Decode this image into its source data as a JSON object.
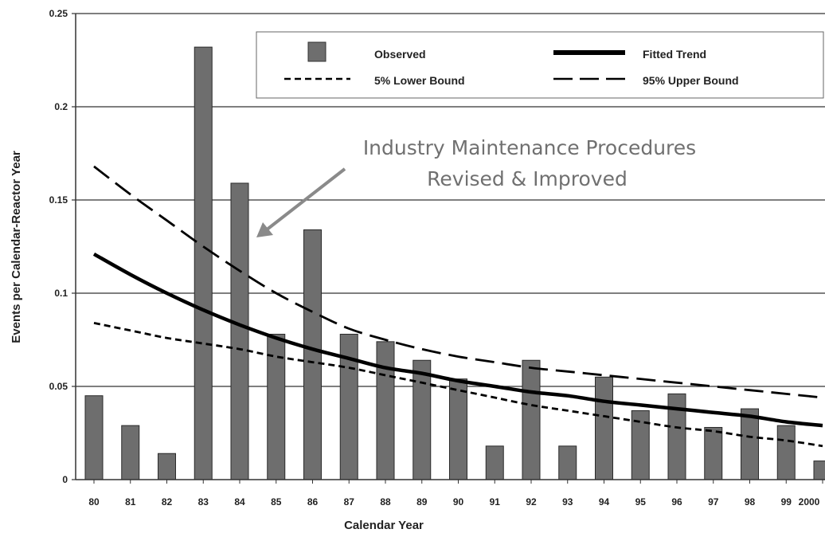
{
  "chart_data": {
    "type": "bar",
    "xlabel": "Calendar Year",
    "ylabel": "Events per Calendar-Reactor Year",
    "ylim": [
      0,
      0.25
    ],
    "yticks": [
      "0",
      "0.05",
      "0.1",
      "0.15",
      "0.2",
      "0.25"
    ],
    "yticks_values": [
      0,
      0.05,
      0.1,
      0.15,
      0.2,
      0.25
    ],
    "grid": true,
    "legend_position": "top-right",
    "categories": [
      "80",
      "81",
      "82",
      "83",
      "84",
      "85",
      "86",
      "87",
      "88",
      "89",
      "90",
      "91",
      "92",
      "93",
      "94",
      "95",
      "96",
      "97",
      "98",
      "99",
      "2000"
    ],
    "series": [
      {
        "name": "Observed",
        "kind": "bar",
        "color": "#6e6e6e",
        "values": [
          0.045,
          0.029,
          0.014,
          0.232,
          0.159,
          0.078,
          0.134,
          0.078,
          0.074,
          0.064,
          0.054,
          0.018,
          0.064,
          0.018,
          0.055,
          0.037,
          0.046,
          0.028,
          0.038,
          0.029,
          0.01
        ]
      },
      {
        "name": "Fitted Trend",
        "kind": "line",
        "style": "solid",
        "values": [
          0.121,
          0.11,
          0.1,
          0.091,
          0.083,
          0.076,
          0.07,
          0.065,
          0.06,
          0.057,
          0.053,
          0.05,
          0.047,
          0.045,
          0.042,
          0.04,
          0.038,
          0.036,
          0.034,
          0.031,
          0.029
        ]
      },
      {
        "name": "5% Lower Bound",
        "kind": "line",
        "style": "short-dash",
        "values": [
          0.084,
          0.08,
          0.076,
          0.073,
          0.07,
          0.066,
          0.063,
          0.06,
          0.056,
          0.052,
          0.048,
          0.044,
          0.04,
          0.037,
          0.034,
          0.031,
          0.028,
          0.026,
          0.023,
          0.021,
          0.018
        ]
      },
      {
        "name": "95% Upper Bound",
        "kind": "line",
        "style": "long-dash",
        "values": [
          0.168,
          0.153,
          0.139,
          0.125,
          0.112,
          0.1,
          0.09,
          0.081,
          0.075,
          0.07,
          0.066,
          0.063,
          0.06,
          0.058,
          0.056,
          0.054,
          0.052,
          0.05,
          0.048,
          0.046,
          0.044
        ]
      }
    ],
    "annotation": {
      "lines": [
        "Industry Maintenance Procedures",
        "Revised & Improved"
      ],
      "color": "#8a8a8a"
    }
  }
}
